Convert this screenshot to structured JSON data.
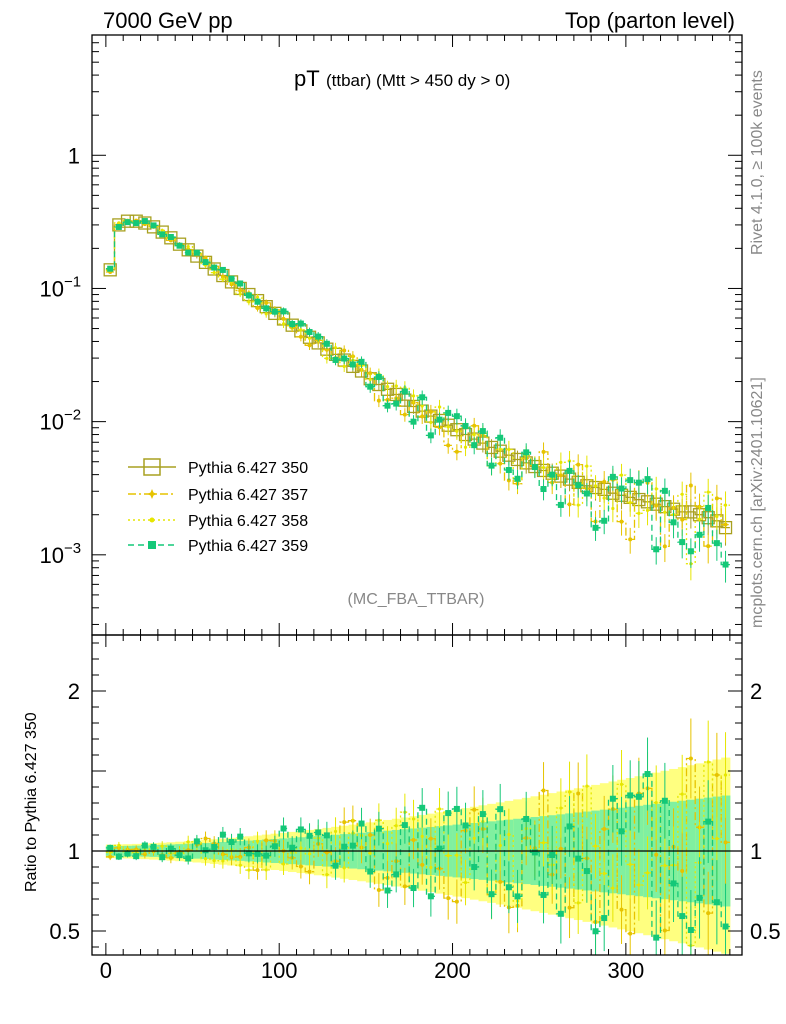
{
  "header": {
    "left": "7000 GeV pp",
    "right": "Top (parton level)"
  },
  "side": {
    "rivet": "Rivet 4.1.0, ≥ 100k events",
    "mcplots": "mcplots.cern.ch [arXiv:2401.10621]"
  },
  "chart_data": {
    "type": "line",
    "title_main": "pT",
    "title_sub": "(ttbar) (Mtt > 450 dy > 0)",
    "analysis_tag": "(MC_FBA_TTBAR)",
    "xlabel": "",
    "ylabel_ratio": "Ratio to Pythia 6.427 350",
    "xlim": [
      -8,
      367
    ],
    "ylim_main_log": [
      0.00025,
      8
    ],
    "ylim_ratio": [
      0.35,
      2.35
    ],
    "x_ticks": [
      "0",
      "100",
      "200",
      "300"
    ],
    "y_ticks_main": [
      "1",
      "10^-1",
      "10^-2",
      "10^-3"
    ],
    "y_ticks_ratio": [
      "0.5",
      "1",
      "2"
    ],
    "bin_width": 5,
    "reference_points": [
      [
        2.5,
        0.138
      ],
      [
        7.5,
        0.3
      ],
      [
        12.5,
        0.32
      ],
      [
        17.5,
        0.32
      ],
      [
        22.5,
        0.31
      ],
      [
        27.5,
        0.29
      ],
      [
        32.5,
        0.265
      ],
      [
        37.5,
        0.24
      ],
      [
        42.5,
        0.215
      ],
      [
        47.5,
        0.195
      ],
      [
        52.5,
        0.175
      ],
      [
        57.5,
        0.157
      ],
      [
        62.5,
        0.14
      ],
      [
        67.5,
        0.125
      ],
      [
        72.5,
        0.112
      ],
      [
        77.5,
        0.1
      ],
      [
        82.5,
        0.09
      ],
      [
        87.5,
        0.081
      ],
      [
        92.5,
        0.073
      ],
      [
        97.5,
        0.065
      ],
      [
        102.5,
        0.059
      ],
      [
        107.5,
        0.053
      ],
      [
        112.5,
        0.048
      ],
      [
        117.5,
        0.043
      ],
      [
        122.5,
        0.039
      ],
      [
        127.5,
        0.035
      ],
      [
        132.5,
        0.032
      ],
      [
        137.5,
        0.029
      ],
      [
        142.5,
        0.026
      ],
      [
        147.5,
        0.024
      ],
      [
        152.5,
        0.021
      ],
      [
        157.5,
        0.019
      ],
      [
        162.5,
        0.0175
      ],
      [
        167.5,
        0.016
      ],
      [
        172.5,
        0.0145
      ],
      [
        177.5,
        0.013
      ],
      [
        182.5,
        0.012
      ],
      [
        187.5,
        0.011
      ],
      [
        192.5,
        0.0102
      ],
      [
        197.5,
        0.0094
      ],
      [
        202.5,
        0.0087
      ],
      [
        207.5,
        0.008
      ],
      [
        212.5,
        0.0074
      ],
      [
        217.5,
        0.0069
      ],
      [
        222.5,
        0.0064
      ],
      [
        227.5,
        0.006
      ],
      [
        232.5,
        0.0056
      ],
      [
        237.5,
        0.0052
      ],
      [
        242.5,
        0.0049
      ],
      [
        247.5,
        0.0046
      ],
      [
        252.5,
        0.0043
      ],
      [
        257.5,
        0.0041
      ],
      [
        262.5,
        0.0039
      ],
      [
        267.5,
        0.0037
      ],
      [
        272.5,
        0.0035
      ],
      [
        277.5,
        0.0033
      ],
      [
        282.5,
        0.0032
      ],
      [
        287.5,
        0.0031
      ],
      [
        292.5,
        0.0029
      ],
      [
        297.5,
        0.0028
      ],
      [
        302.5,
        0.0027
      ],
      [
        307.5,
        0.0026
      ],
      [
        312.5,
        0.0025
      ],
      [
        317.5,
        0.0024
      ],
      [
        322.5,
        0.0023
      ],
      [
        327.5,
        0.0022
      ],
      [
        332.5,
        0.0021
      ],
      [
        337.5,
        0.0021
      ],
      [
        342.5,
        0.002
      ],
      [
        347.5,
        0.0019
      ],
      [
        352.5,
        0.0018
      ],
      [
        357.5,
        0.0016
      ]
    ],
    "series": [
      {
        "name": "Pythia 6.427 350",
        "color": "#a8a020",
        "style": "solid",
        "marker": "open-square",
        "seed": 0
      },
      {
        "name": "Pythia 6.427 357",
        "color": "#e6c300",
        "style": "dashdot",
        "marker": "star",
        "seed": 3
      },
      {
        "name": "Pythia 6.427 358",
        "color": "#e6e600",
        "style": "dotted",
        "marker": "dot",
        "seed": 7
      },
      {
        "name": "Pythia 6.427 359",
        "color": "#14c878",
        "style": "dashed",
        "marker": "filled-square",
        "seed": 11
      }
    ],
    "ratio_band_colors": {
      "yellow": "#ffff80",
      "green": "#80f0a0"
    }
  }
}
